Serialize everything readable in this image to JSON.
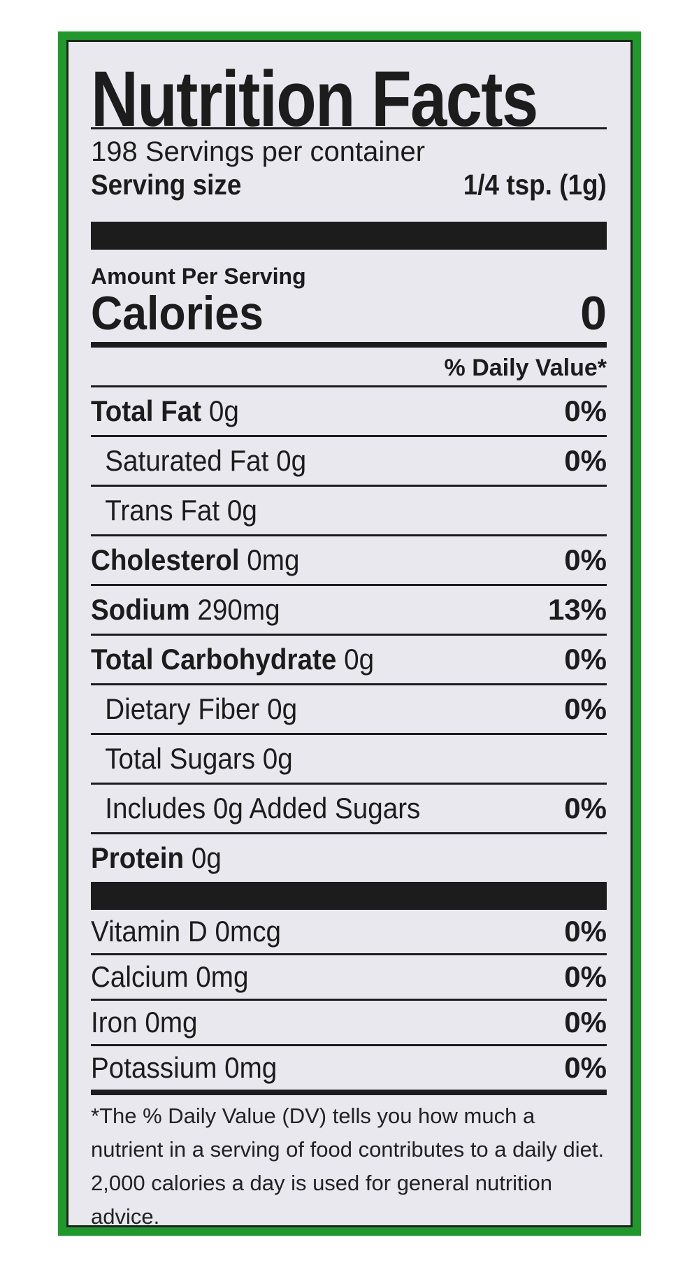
{
  "title": "Nutrition Facts",
  "servings_per_container": "198 Servings per container",
  "serving_size": {
    "label": "Serving size",
    "value": "1/4 tsp. (1g)"
  },
  "amount_per_serving": "Amount Per Serving",
  "calories": {
    "label": "Calories",
    "value": "0"
  },
  "daily_value_header": "% Daily Value*",
  "nutrients": [
    {
      "name": "Total Fat",
      "amount": "0g",
      "dv": "0%"
    },
    {
      "name": "Saturated Fat",
      "amount": "0g",
      "dv": "0%"
    },
    {
      "name": "Trans Fat",
      "amount": "0g",
      "dv": ""
    },
    {
      "name": "Cholesterol",
      "amount": "0mg",
      "dv": "0%"
    },
    {
      "name": "Sodium",
      "amount": "290mg",
      "dv": "13%"
    },
    {
      "name": "Total Carbohydrate",
      "amount": "0g",
      "dv": "0%"
    },
    {
      "name": "Dietary Fiber",
      "amount": "0g",
      "dv": "0%"
    },
    {
      "name": "Total Sugars",
      "amount": "0g",
      "dv": ""
    },
    {
      "name": "Includes",
      "amount": "0g Added Sugars",
      "dv": "0%"
    },
    {
      "name": "Protein",
      "amount": "0g",
      "dv": ""
    }
  ],
  "vitamins": [
    {
      "name": "Vitamin D",
      "amount": "0mcg",
      "dv": "0%"
    },
    {
      "name": "Calcium",
      "amount": "0mg",
      "dv": "0%"
    },
    {
      "name": "Iron",
      "amount": "0mg",
      "dv": "0%"
    },
    {
      "name": "Potassium",
      "amount": "0mg",
      "dv": "0%"
    }
  ],
  "footnote": "*The % Daily Value (DV) tells you how much a nutrient in a serving of food contributes to a daily diet. 2,000 calories a day is used for general nutrition advice.",
  "colors": {
    "border": "#1f9a2a",
    "background": "#e9e8ee",
    "ink": "#1c1c1c"
  }
}
